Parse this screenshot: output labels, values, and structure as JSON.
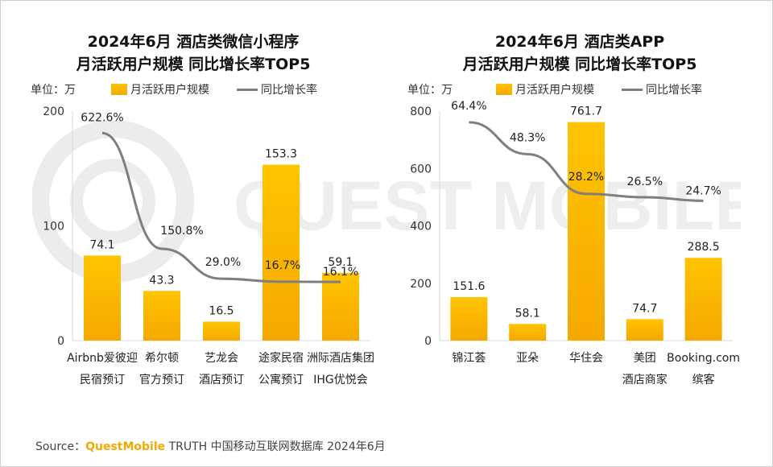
{
  "chart_data": [
    {
      "type": "bar",
      "title_lines": [
        "2024年6月 酒店类微信小程序",
        "月活跃用户规模 同比增长率TOP5"
      ],
      "unit": "单位：万",
      "legend": [
        "月活跃用户规模",
        "同比增长率"
      ],
      "categories": [
        [
          "Airbnb爱彼迎",
          "民宿预订"
        ],
        [
          "希尔顿",
          "官方预订"
        ],
        [
          "艺龙会",
          "酒店预订"
        ],
        [
          "途家民宿",
          "公寓预订"
        ],
        [
          "洲际酒店集团",
          "IHG优悦会"
        ]
      ],
      "values": [
        74.1,
        43.3,
        16.5,
        153.3,
        59.1
      ],
      "value_labels": [
        "74.1",
        "43.3",
        "16.5",
        "153.3",
        "59.1"
      ],
      "growth": [
        622.6,
        150.8,
        29.0,
        16.7,
        16.1
      ],
      "growth_labels": [
        "622.6%",
        "150.8%",
        "29.0%",
        "16.7%",
        "16.1%"
      ],
      "ylim": [
        0,
        200
      ],
      "yticks": [
        "0",
        "100",
        "200"
      ]
    },
    {
      "type": "bar",
      "title_lines": [
        "2024年6月 酒店类APP",
        "月活跃用户规模 同比增长率TOP5"
      ],
      "unit": "单位：万",
      "legend": [
        "月活跃用户规模",
        "同比增长率"
      ],
      "categories": [
        [
          "锦江荟"
        ],
        [
          "亚朵"
        ],
        [
          "华住会"
        ],
        [
          "美团",
          "酒店商家"
        ],
        [
          "Booking.com",
          "缤客"
        ]
      ],
      "values": [
        151.6,
        58.1,
        761.7,
        74.7,
        288.5
      ],
      "value_labels": [
        "151.6",
        "58.1",
        "761.7",
        "74.7",
        "288.5"
      ],
      "growth": [
        64.4,
        48.3,
        28.2,
        26.5,
        24.7
      ],
      "growth_labels": [
        "64.4%",
        "48.3%",
        "28.2%",
        "26.5%",
        "24.7%"
      ],
      "ylim": [
        0,
        800
      ],
      "yticks": [
        "0",
        "200",
        "400",
        "600",
        "800"
      ]
    }
  ],
  "colors": {
    "bar_top": "#ffc400",
    "bar_bottom": "#f5a800",
    "line": "#7f7f7f",
    "brand": "#f5a800"
  },
  "watermark": "QUEST MOBILE",
  "source": {
    "prefix": "Source：",
    "brand": "QuestMobile",
    "rest": " TRUTH 中国移动互联网数据库 2024年6月"
  }
}
